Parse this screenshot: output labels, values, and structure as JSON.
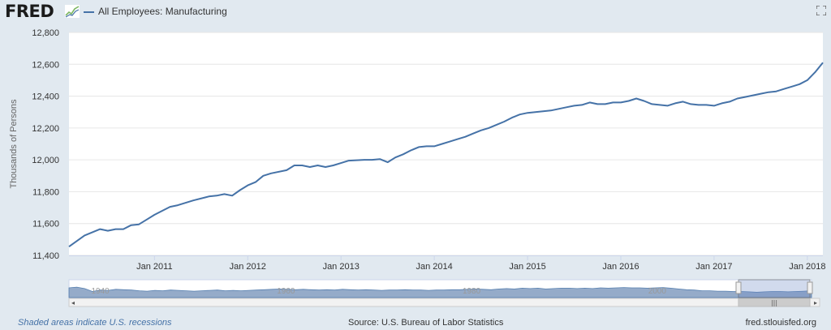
{
  "header": {
    "logo_text": "FRED",
    "logo_icon": "fred-graph-icon",
    "series_label": "All Employees: Manufacturing",
    "fullscreen_icon": "fullscreen-icon"
  },
  "footer": {
    "recession_note": "Shaded areas indicate U.S. recessions",
    "source": "Source: U.S. Bureau of Labor Statistics",
    "site": "fred.stlouisfed.org"
  },
  "colors": {
    "series": "#4572a7",
    "background": "#e1e9f0",
    "plot": "#ffffff",
    "navigator_fill": "#8aa3c4"
  },
  "chart_data": {
    "type": "line",
    "title": "",
    "xlabel": "",
    "ylabel": "Thousands of Persons",
    "ylim": [
      11400,
      12800
    ],
    "yticks": [
      11400,
      11600,
      11800,
      12000,
      12200,
      12400,
      12600,
      12800
    ],
    "ytick_labels": [
      "11,400",
      "11,600",
      "11,800",
      "12,000",
      "12,200",
      "12,400",
      "12,600",
      "12,800"
    ],
    "xlim": [
      "2010-02",
      "2018-03"
    ],
    "xticks": [
      "2011-01",
      "2012-01",
      "2013-01",
      "2014-01",
      "2015-01",
      "2016-01",
      "2017-01",
      "2018-01"
    ],
    "xtick_labels": [
      "Jan 2011",
      "Jan 2012",
      "Jan 2013",
      "Jan 2014",
      "Jan 2015",
      "Jan 2016",
      "Jan 2017",
      "Jan 2018"
    ],
    "grid": true,
    "legend": "top-left",
    "series": [
      {
        "name": "All Employees: Manufacturing",
        "x": [
          "2010-02",
          "2010-04",
          "2010-06",
          "2010-07",
          "2010-08",
          "2010-09",
          "2010-10",
          "2010-11",
          "2010-12",
          "2011-01",
          "2011-02",
          "2011-03",
          "2011-04",
          "2011-06",
          "2011-08",
          "2011-09",
          "2011-10",
          "2011-11",
          "2011-12",
          "2012-01",
          "2012-02",
          "2012-03",
          "2012-04",
          "2012-06",
          "2012-07",
          "2012-08",
          "2012-09",
          "2012-10",
          "2012-11",
          "2012-12",
          "2013-01",
          "2013-02",
          "2013-04",
          "2013-05",
          "2013-06",
          "2013-07",
          "2013-08",
          "2013-09",
          "2013-10",
          "2013-11",
          "2013-12",
          "2014-01",
          "2014-02",
          "2014-03",
          "2014-04",
          "2014-05",
          "2014-06",
          "2014-07",
          "2014-08",
          "2014-09",
          "2014-10",
          "2014-11",
          "2014-12",
          "2015-01",
          "2015-02",
          "2015-03",
          "2015-04",
          "2015-05",
          "2015-06",
          "2015-07",
          "2015-08",
          "2015-09",
          "2015-10",
          "2015-11",
          "2015-12",
          "2016-01",
          "2016-02",
          "2016-03",
          "2016-04",
          "2016-05",
          "2016-06",
          "2016-07",
          "2016-08",
          "2016-09",
          "2016-10",
          "2016-11",
          "2016-12",
          "2017-01",
          "2017-02",
          "2017-03",
          "2017-04",
          "2017-05",
          "2017-06",
          "2017-07",
          "2017-08",
          "2017-09",
          "2017-10",
          "2017-11",
          "2017-12",
          "2018-01",
          "2018-02",
          "2018-03"
        ],
        "values": [
          11455,
          11525,
          11565,
          11555,
          11565,
          11565,
          11590,
          11595,
          11625,
          11655,
          11680,
          11705,
          11715,
          11745,
          11770,
          11775,
          11785,
          11775,
          11810,
          11840,
          11860,
          11900,
          11915,
          11935,
          11965,
          11965,
          11955,
          11965,
          11955,
          11965,
          11980,
          11995,
          12000,
          12000,
          12005,
          11985,
          12015,
          12035,
          12060,
          12080,
          12085,
          12085,
          12100,
          12115,
          12130,
          12145,
          12165,
          12185,
          12200,
          12220,
          12240,
          12265,
          12285,
          12295,
          12300,
          12305,
          12310,
          12320,
          12330,
          12340,
          12345,
          12360,
          12350,
          12350,
          12360,
          12360,
          12370,
          12385,
          12370,
          12350,
          12345,
          12340,
          12355,
          12365,
          12350,
          12345,
          12345,
          12340,
          12355,
          12365,
          12385,
          12395,
          12405,
          12415,
          12425,
          12430,
          12445,
          12460,
          12475,
          12500,
          12550,
          12610
        ]
      }
    ],
    "navigator": {
      "tick_labels": [
        "1940",
        "1960",
        "1980",
        "2000"
      ]
    }
  }
}
